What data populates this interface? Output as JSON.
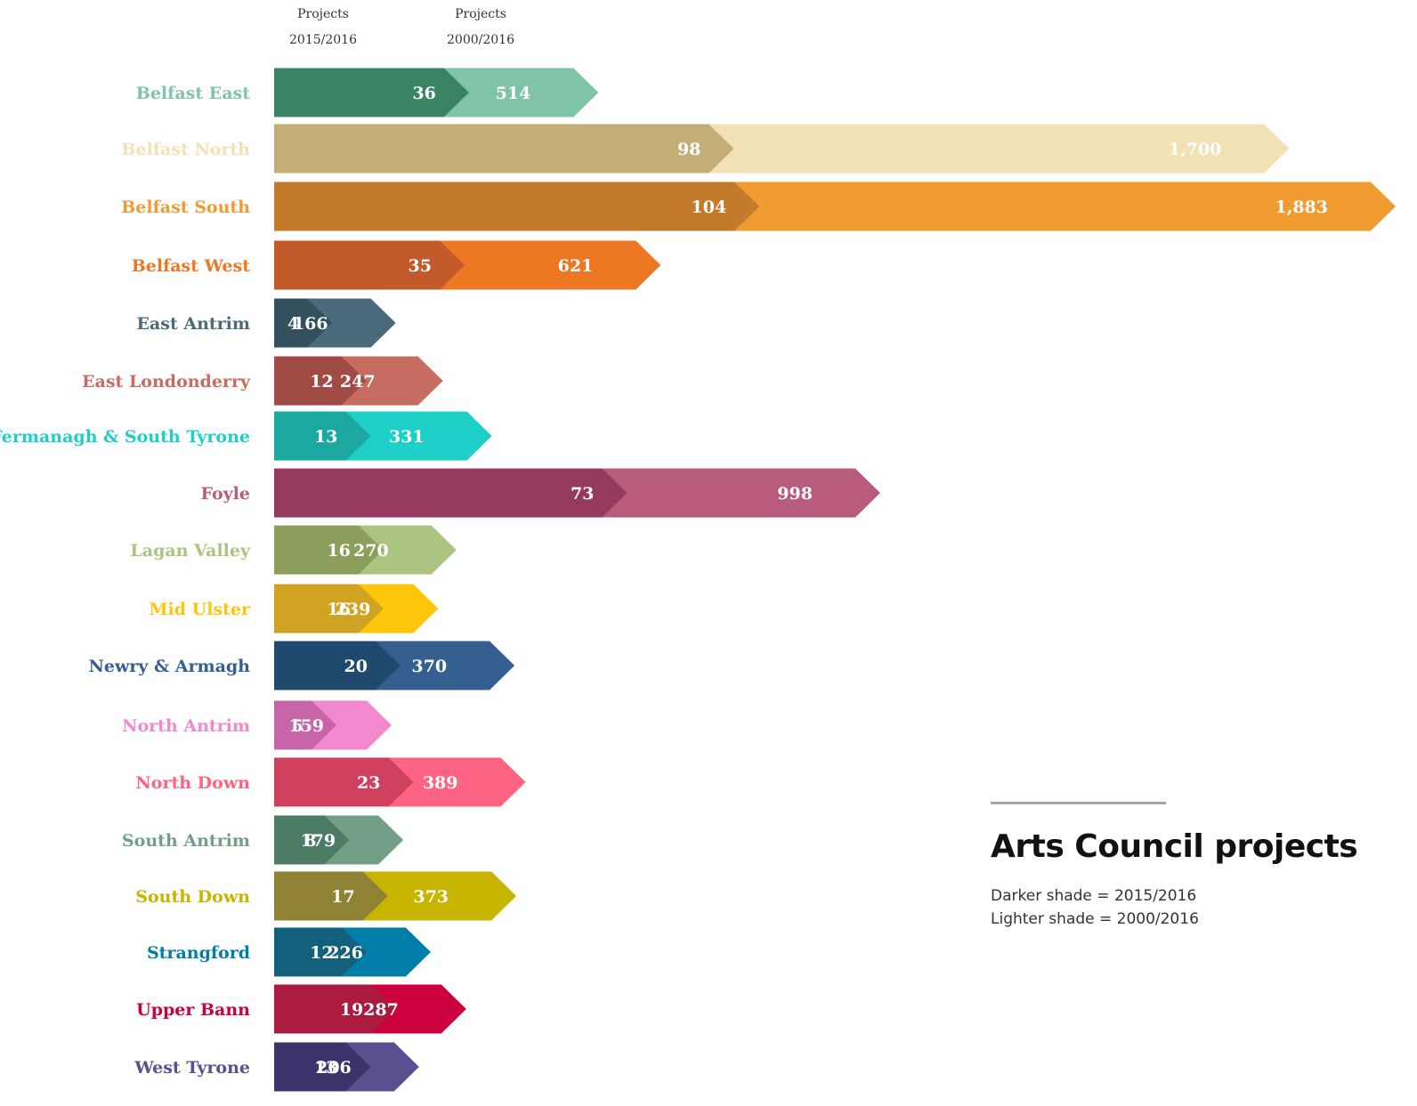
{
  "chart_data": {
    "type": "bar",
    "orientation": "horizontal",
    "title": "Arts Council projects",
    "column_headers": [
      {
        "line1": "Projects",
        "line2": "2015/2016"
      },
      {
        "line1": "Projects",
        "line2": "2000/2016"
      }
    ],
    "legend": [
      "Darker shade = 2015/2016",
      "Lighter shade = 2000/2016"
    ],
    "legend_placement": "bottom-right",
    "categories": [
      "Belfast East",
      "Belfast North",
      "Belfast South",
      "Belfast West",
      "East Antrim",
      "East Londonderry",
      "Fermanagh & South Tyrone",
      "Foyle",
      "Lagan Valley",
      "Mid Ulster",
      "Newry & Armagh",
      "North Antrim",
      "North Down",
      "South Antrim",
      "South Down",
      "Strangford",
      "Upper Bann",
      "West Tyrone"
    ],
    "series": [
      {
        "values": [
          36,
          98,
          104,
          35,
          4,
          12,
          13,
          73,
          16,
          16,
          20,
          5,
          23,
          8,
          17,
          12,
          19,
          13
        ]
      },
      {
        "values": [
          514,
          1700,
          1883,
          621,
          166,
          247,
          331,
          998,
          270,
          239,
          370,
          159,
          389,
          179,
          373,
          226,
          287,
          206
        ]
      }
    ],
    "value_labels": [
      [
        "36",
        "98",
        "104",
        "35",
        "4",
        "12",
        "13",
        "73",
        "16",
        "16",
        "20",
        "5",
        "23",
        "8",
        "17",
        "12",
        "19",
        "13"
      ],
      [
        "514",
        "1,700",
        "1,883",
        "621",
        "166",
        "247",
        "331",
        "998",
        "270",
        "239",
        "370",
        "159",
        "389",
        "179",
        "373",
        "226",
        "287",
        "206"
      ]
    ],
    "colors": {
      "dark": [
        "#3a8464",
        "#c4ae77",
        "#c37a2b",
        "#c25a2a",
        "#33505f",
        "#a04b44",
        "#1aa8a1",
        "#953a5d",
        "#8c9e5c",
        "#d0a322",
        "#1f4a6e",
        "#c864a8",
        "#cf3f5e",
        "#4d7c64",
        "#8f8235",
        "#13607c",
        "#ab1b40",
        "#3c336a"
      ],
      "light": [
        "#7fc3a9",
        "#f1e1b5",
        "#f09c31",
        "#ed7723",
        "#4c6b7a",
        "#c66c61",
        "#1ecfc7",
        "#b95b7d",
        "#abc47f",
        "#fdc60a",
        "#355f91",
        "#f288ce",
        "#fe6481",
        "#72a086",
        "#c7b500",
        "#007ea7",
        "#cb003c",
        "#58508f"
      ],
      "label": [
        "#7fc3a9",
        "#f1e1b5",
        "#f09c31",
        "#ed7723",
        "#4c6b7a",
        "#c66c61",
        "#1ecfc7",
        "#b95b7d",
        "#abc47f",
        "#fdc60a",
        "#355f91",
        "#f288ce",
        "#fe6481",
        "#72a086",
        "#c7b500",
        "#007ea7",
        "#cb003c",
        "#58508f"
      ]
    }
  }
}
